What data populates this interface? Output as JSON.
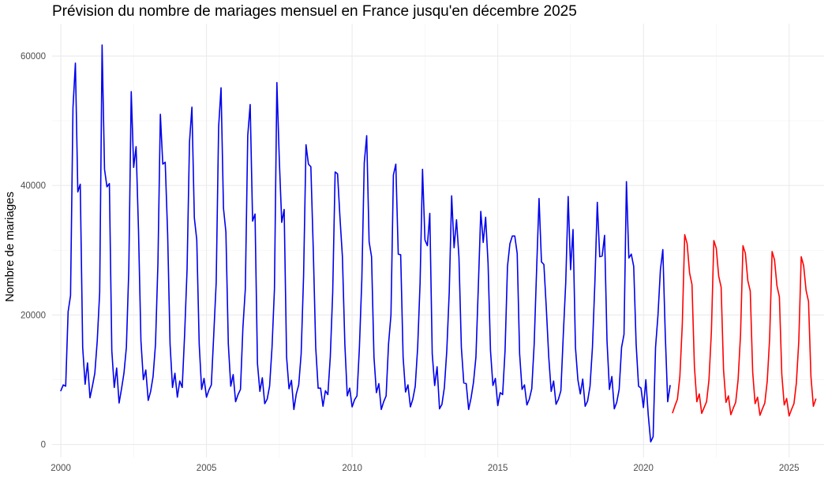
{
  "chart_data": {
    "type": "line",
    "title": "Prévision du nombre de mariages mensuel en France jusqu'en décembre 2025",
    "xlabel": "",
    "ylabel": "Nombre de mariages",
    "xlim": [
      1999.7,
      2026.2
    ],
    "ylim": [
      -2000,
      65000
    ],
    "x_ticks": [
      2000,
      2005,
      2010,
      2015,
      2020,
      2025
    ],
    "x_tick_labels": [
      "2000",
      "2005",
      "2010",
      "2015",
      "2020",
      "2025"
    ],
    "y_ticks": [
      0,
      20000,
      40000,
      60000
    ],
    "y_tick_labels": [
      "0",
      "20000",
      "40000",
      "60000"
    ],
    "grid": true,
    "legend": "none",
    "series": [
      {
        "color": "#0000ee",
        "x_start": 2000.0,
        "x_step": 0.08333,
        "values": [
          8300,
          9200,
          9000,
          20500,
          23000,
          52000,
          58900,
          39000,
          40200,
          15000,
          9300,
          12600,
          7200,
          9000,
          11000,
          16000,
          23500,
          61700,
          42500,
          39800,
          40300,
          14500,
          8800,
          11800,
          6400,
          8600,
          11000,
          15000,
          27000,
          54500,
          42800,
          46000,
          33000,
          16000,
          10000,
          11500,
          6800,
          8200,
          10500,
          15500,
          28000,
          51000,
          43300,
          43600,
          32500,
          15500,
          8800,
          11000,
          7300,
          9800,
          8800,
          17000,
          27000,
          46700,
          52100,
          35000,
          31600,
          15500,
          8500,
          10200,
          7300,
          8400,
          9200,
          17000,
          25000,
          49000,
          55100,
          36500,
          32800,
          15500,
          9000,
          10800,
          6600,
          7700,
          8500,
          18000,
          24000,
          47700,
          52500,
          34500,
          35600,
          12500,
          8200,
          10300,
          6300,
          7000,
          9000,
          15000,
          24000,
          55900,
          44000,
          34300,
          36300,
          13500,
          8600,
          9900,
          5400,
          7800,
          9200,
          14000,
          26000,
          46300,
          43300,
          42900,
          30000,
          15000,
          8700,
          8700,
          5900,
          8300,
          7700,
          13500,
          23500,
          42100,
          41800,
          35000,
          29000,
          15500,
          7500,
          8700,
          5800,
          6900,
          7500,
          15000,
          25500,
          43500,
          47700,
          31300,
          29000,
          13500,
          8000,
          9400,
          5400,
          6600,
          7500,
          15500,
          20000,
          41600,
          43300,
          29400,
          29300,
          13500,
          8100,
          9200,
          5800,
          7000,
          9000,
          15000,
          25000,
          42500,
          31600,
          30700,
          35700,
          14000,
          9100,
          12000,
          5500,
          6200,
          8800,
          14500,
          23500,
          38400,
          30400,
          34700,
          29000,
          15000,
          9500,
          9400,
          5400,
          7200,
          9600,
          13500,
          24500,
          36000,
          31200,
          35100,
          28000,
          14500,
          9100,
          10200,
          6000,
          8000,
          7700,
          14500,
          27500,
          31000,
          32200,
          32200,
          29500,
          14000,
          8500,
          9200,
          6100,
          7000,
          8600,
          15500,
          27000,
          38000,
          28200,
          27800,
          21000,
          13500,
          8200,
          9800,
          6200,
          7000,
          8300,
          17000,
          25000,
          38300,
          27000,
          33200,
          15000,
          10000,
          7800,
          10100,
          5900,
          6700,
          9000,
          15000,
          25000,
          37400,
          29000,
          29100,
          32300,
          16000,
          8500,
          10500,
          5500,
          6500,
          8500,
          15000,
          17000,
          40600,
          28800,
          29400,
          27500,
          15500,
          9000,
          8700,
          5700,
          10000,
          4500,
          400,
          1200,
          15000,
          20000,
          27000,
          30100,
          17000,
          6600,
          9100
        ]
      },
      {
        "color": "#ff0000",
        "x_start": 2021.0,
        "x_step": 0.08333,
        "values": [
          4900,
          6000,
          7000,
          10500,
          18500,
          32400,
          31000,
          26500,
          24700,
          12000,
          6600,
          7800,
          4800,
          5700,
          6600,
          10000,
          17500,
          31500,
          30300,
          26000,
          24300,
          11500,
          6500,
          7500,
          4600,
          5600,
          6500,
          10000,
          17000,
          30700,
          29500,
          25300,
          23700,
          11200,
          6300,
          7300,
          4500,
          5500,
          6400,
          9800,
          16500,
          29800,
          28500,
          24500,
          22800,
          10800,
          6100,
          7100,
          4400,
          5400,
          6300,
          9500,
          16000,
          29000,
          27600,
          23800,
          22100,
          10500,
          5900,
          7000
        ]
      }
    ]
  }
}
